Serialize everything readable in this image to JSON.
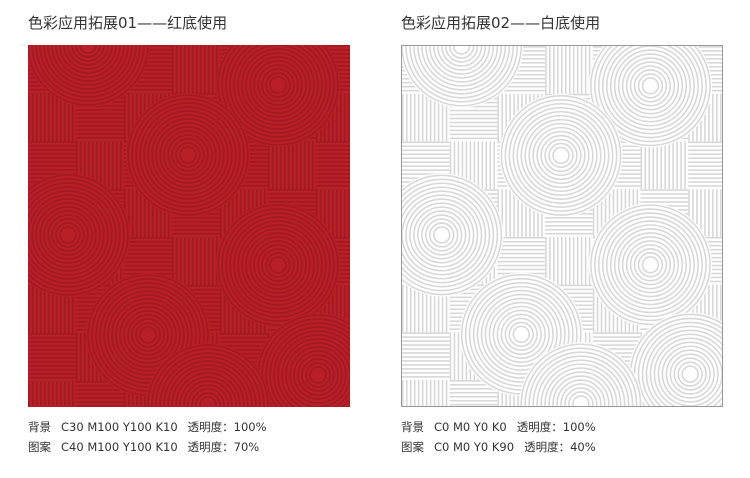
{
  "panels": [
    {
      "title": "色彩应用拓展01——红底使用",
      "bg_color": "#b81f28",
      "pattern_color": "#a11a22",
      "specs": [
        {
          "label": "背景",
          "cmyk": "C30 M100 Y100 K10",
          "opacity": "透明度：100%"
        },
        {
          "label": "图案",
          "cmyk": "C40 M100 Y100 K10",
          "opacity": "透明度：70%"
        }
      ]
    },
    {
      "title": "色彩应用拓展02——白底使用",
      "bg_color": "#ffffff",
      "pattern_color": "#d8d8d8",
      "specs": [
        {
          "label": "背景",
          "cmyk": "C0 M0 Y0 K0",
          "opacity": "透明度：100%"
        },
        {
          "label": "图案",
          "cmyk": "C0 M0 Y0 K90",
          "opacity": "透明度：40%"
        }
      ]
    }
  ]
}
